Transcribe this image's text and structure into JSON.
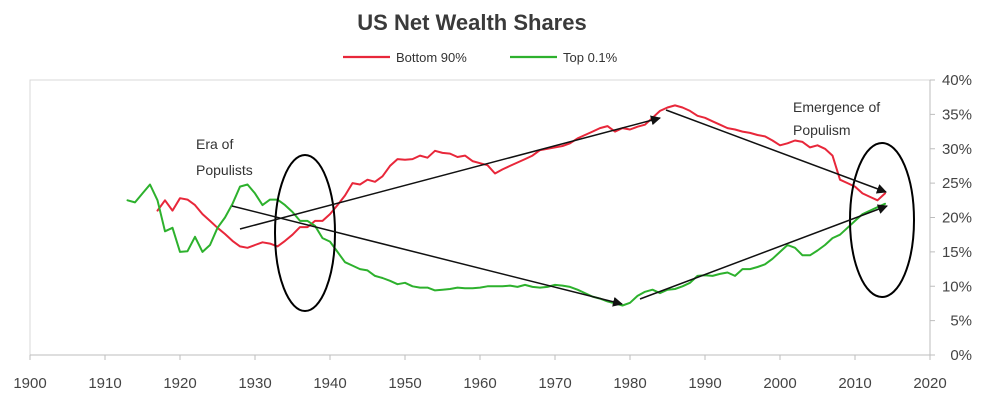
{
  "chart_data": {
    "type": "line",
    "title": "US Net Wealth Shares",
    "xlim": [
      1900,
      2020
    ],
    "ylim": [
      0,
      40
    ],
    "x_ticks": [
      {
        "value": 1900,
        "label": "1900"
      },
      {
        "value": 1910,
        "label": "1910"
      },
      {
        "value": 1920,
        "label": "1920"
      },
      {
        "value": 1930,
        "label": "1930"
      },
      {
        "value": 1940,
        "label": "1940"
      },
      {
        "value": 1950,
        "label": "1950"
      },
      {
        "value": 1960,
        "label": "1960"
      },
      {
        "value": 1970,
        "label": "1970"
      },
      {
        "value": 1980,
        "label": "1980"
      },
      {
        "value": 1990,
        "label": "1990"
      },
      {
        "value": 2000,
        "label": "2000"
      },
      {
        "value": 2010,
        "label": "2010"
      },
      {
        "value": 2020,
        "label": "2020"
      }
    ],
    "y_ticks": [
      {
        "value": 0,
        "label": "0%"
      },
      {
        "value": 5,
        "label": "5%"
      },
      {
        "value": 10,
        "label": "10%"
      },
      {
        "value": 15,
        "label": "15%"
      },
      {
        "value": 20,
        "label": "20%"
      },
      {
        "value": 25,
        "label": "25%"
      },
      {
        "value": 30,
        "label": "30%"
      },
      {
        "value": 35,
        "label": "35%"
      },
      {
        "value": 40,
        "label": "40%"
      }
    ],
    "legend_position": "top-center",
    "grid": false,
    "series": [
      {
        "name": "Bottom 90%",
        "color": "#e8273a",
        "x": [
          1917,
          1918,
          1919,
          1920,
          1921,
          1922,
          1923,
          1924,
          1925,
          1926,
          1927,
          1928,
          1929,
          1930,
          1931,
          1932,
          1933,
          1934,
          1935,
          1936,
          1937,
          1938,
          1939,
          1940,
          1941,
          1942,
          1943,
          1944,
          1945,
          1946,
          1947,
          1948,
          1949,
          1950,
          1951,
          1952,
          1953,
          1954,
          1955,
          1956,
          1957,
          1958,
          1959,
          1960,
          1961,
          1962,
          1963,
          1964,
          1965,
          1966,
          1967,
          1968,
          1969,
          1970,
          1971,
          1972,
          1973,
          1974,
          1975,
          1976,
          1977,
          1978,
          1979,
          1980,
          1981,
          1982,
          1983,
          1984,
          1985,
          1986,
          1987,
          1988,
          1989,
          1990,
          1991,
          1992,
          1993,
          1994,
          1995,
          1996,
          1997,
          1998,
          1999,
          2000,
          2001,
          2002,
          2003,
          2004,
          2005,
          2006,
          2007,
          2008,
          2009,
          2010,
          2011,
          2012,
          2013,
          2014
        ],
        "values": [
          21,
          22.5,
          21,
          22.8,
          22.6,
          21.8,
          20.5,
          19.5,
          18.5,
          17.6,
          16.6,
          15.8,
          15.6,
          16.0,
          16.4,
          16.2,
          15.8,
          16.6,
          17.5,
          18.6,
          18.6,
          19.5,
          19.5,
          20.5,
          21.8,
          23.2,
          25.0,
          24.8,
          25.5,
          25.2,
          26.0,
          27.5,
          28.5,
          28.4,
          28.5,
          29.0,
          28.7,
          29.7,
          29.4,
          29.3,
          28.8,
          29.0,
          28.2,
          27.9,
          27.6,
          26.4,
          27.0,
          27.5,
          28.0,
          28.5,
          29.0,
          29.8,
          30.0,
          30.2,
          30.4,
          30.8,
          31.5,
          32.0,
          32.5,
          33.0,
          33.3,
          32.5,
          33.0,
          32.8,
          33.2,
          33.5,
          34.5,
          35.5,
          36.0,
          36.3,
          36.0,
          35.5,
          34.8,
          34.5,
          34.0,
          33.5,
          33.0,
          32.8,
          32.5,
          32.3,
          32.0,
          31.8,
          31.2,
          30.5,
          30.8,
          31.2,
          31.0,
          30.2,
          30.5,
          30.0,
          29.0,
          25.5,
          25.0,
          24.5,
          23.5,
          23.0,
          22.5,
          23.5
        ]
      },
      {
        "name": "Top 0.1%",
        "color": "#2db12d",
        "x": [
          1913,
          1914,
          1915,
          1916,
          1917,
          1918,
          1919,
          1920,
          1921,
          1922,
          1923,
          1924,
          1925,
          1926,
          1927,
          1928,
          1929,
          1930,
          1931,
          1932,
          1933,
          1934,
          1935,
          1936,
          1937,
          1938,
          1939,
          1940,
          1941,
          1942,
          1943,
          1944,
          1945,
          1946,
          1947,
          1948,
          1949,
          1950,
          1951,
          1952,
          1953,
          1954,
          1955,
          1956,
          1957,
          1958,
          1959,
          1960,
          1961,
          1962,
          1963,
          1964,
          1965,
          1966,
          1967,
          1968,
          1969,
          1970,
          1971,
          1972,
          1973,
          1974,
          1975,
          1976,
          1977,
          1978,
          1979,
          1980,
          1981,
          1982,
          1983,
          1984,
          1985,
          1986,
          1987,
          1988,
          1989,
          1990,
          1991,
          1992,
          1993,
          1994,
          1995,
          1996,
          1997,
          1998,
          1999,
          2000,
          2001,
          2002,
          2003,
          2004,
          2005,
          2006,
          2007,
          2008,
          2009,
          2010,
          2011,
          2012,
          2013,
          2014
        ],
        "values": [
          22.5,
          22.2,
          23.5,
          24.8,
          22.5,
          18.0,
          18.5,
          15.0,
          15.1,
          17.2,
          15.0,
          16.0,
          18.5,
          20.0,
          22.0,
          24.5,
          24.8,
          23.5,
          21.8,
          22.6,
          22.6,
          21.8,
          20.8,
          19.5,
          19.5,
          18.8,
          17.0,
          16.5,
          15.0,
          13.5,
          13.0,
          12.5,
          12.3,
          11.5,
          11.2,
          10.8,
          10.3,
          10.5,
          10.0,
          9.8,
          9.8,
          9.4,
          9.5,
          9.6,
          9.8,
          9.7,
          9.7,
          9.8,
          10.0,
          10.0,
          10.0,
          10.1,
          9.9,
          10.2,
          9.9,
          9.8,
          9.9,
          10.2,
          10.1,
          9.9,
          9.5,
          9.0,
          8.5,
          8.2,
          7.8,
          7.5,
          7.2,
          7.6,
          8.6,
          9.2,
          9.5,
          9.0,
          9.5,
          9.6,
          10.0,
          10.5,
          11.5,
          11.6,
          11.5,
          11.8,
          12.0,
          11.5,
          12.5,
          12.5,
          12.8,
          13.2,
          14.0,
          15.0,
          16.0,
          15.6,
          14.5,
          14.5,
          15.2,
          16.0,
          17.0,
          17.5,
          18.5,
          19.5,
          20.5,
          21.0,
          21.5,
          22.0
        ]
      }
    ],
    "annotations": {
      "era_label_line1": "Era of",
      "era_label_line2": "Populists",
      "emergence_label_line1": "Emergence of",
      "emergence_label_line2": "Populism"
    }
  }
}
